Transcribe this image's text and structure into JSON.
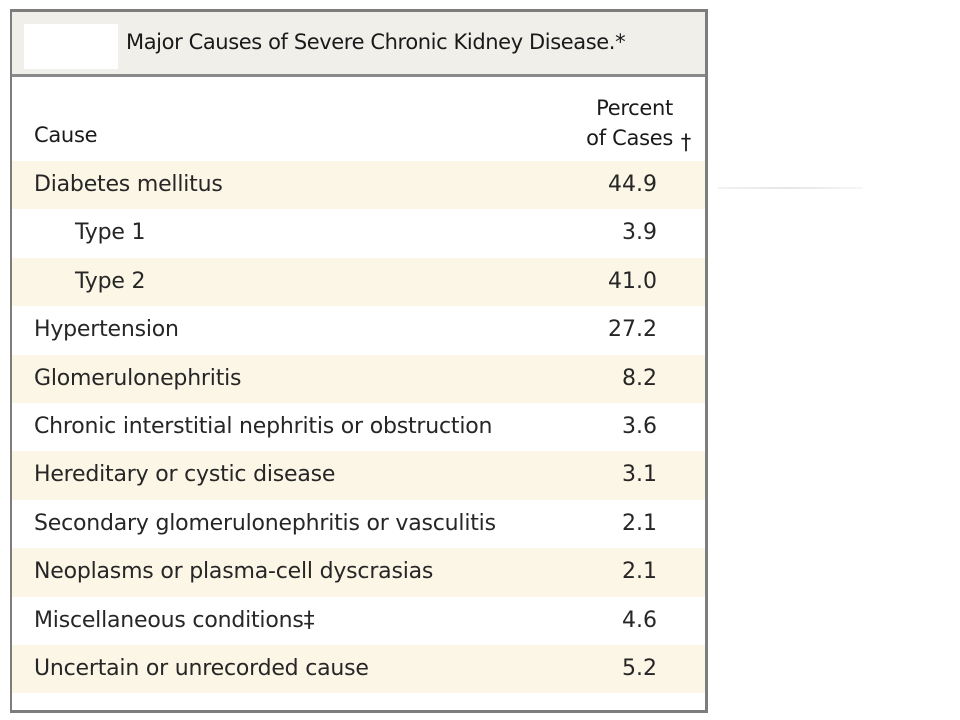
{
  "table": {
    "title": "Major Causes of Severe Chronic Kidney Disease.*",
    "header_cause": "Cause",
    "header_percent_line1": "Percent",
    "header_percent_line2": "of Cases",
    "header_percent_footnote": "†",
    "rows": [
      {
        "cause": "Diabetes mellitus",
        "value": "44.9",
        "indent": false
      },
      {
        "cause": "Type 1",
        "value": "3.9",
        "indent": true
      },
      {
        "cause": "Type 2",
        "value": "41.0",
        "indent": true
      },
      {
        "cause": "Hypertension",
        "value": "27.2",
        "indent": false
      },
      {
        "cause": "Glomerulonephritis",
        "value": "8.2",
        "indent": false
      },
      {
        "cause": "Chronic interstitial nephritis or obstruction",
        "value": "3.6",
        "indent": false
      },
      {
        "cause": "Hereditary or cystic disease",
        "value": "3.1",
        "indent": false
      },
      {
        "cause": "Secondary glomerulonephritis or vasculitis",
        "value": "2.1",
        "indent": false
      },
      {
        "cause": "Neoplasms or plasma-cell dyscrasias",
        "value": "2.1",
        "indent": false
      },
      {
        "cause": "Miscellaneous conditions‡",
        "value": "4.6",
        "indent": false
      },
      {
        "cause": "Uncertain or unrecorded cause",
        "value": "5.2",
        "indent": false
      }
    ]
  },
  "colors": {
    "shaded_row": "#fcf6e6",
    "title_bar": "#f1efea",
    "border": "#7d7d7d"
  }
}
